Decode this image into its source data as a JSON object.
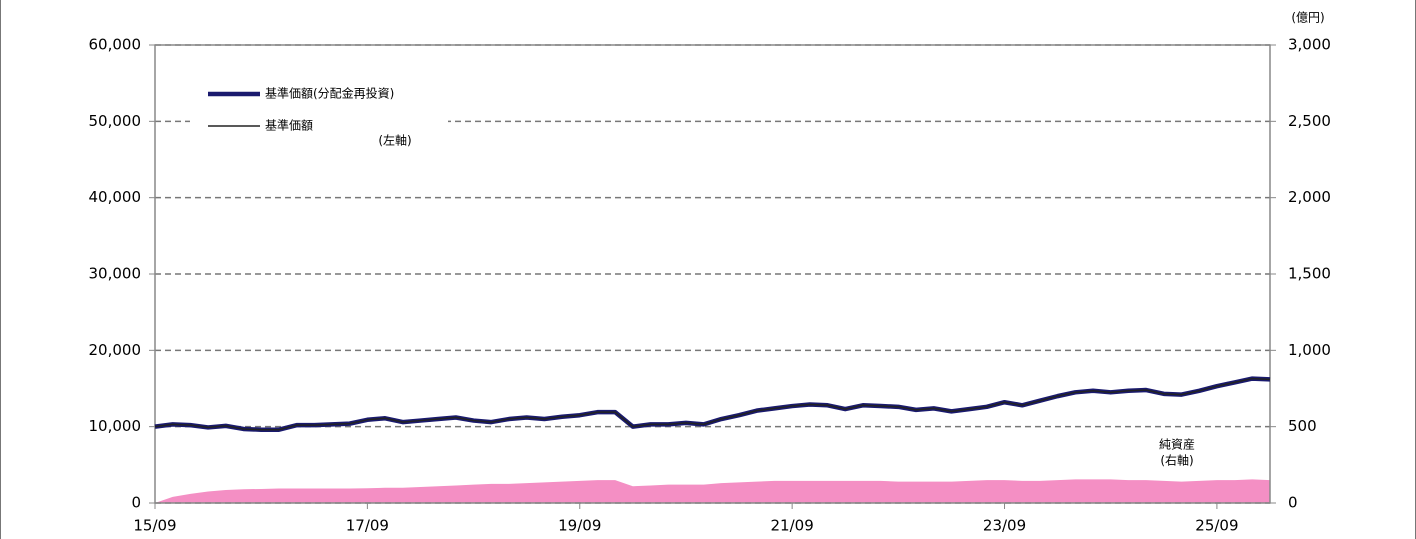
{
  "chart_data": {
    "type": "line",
    "y2_unit": "(億円)",
    "annotations": [
      "(左軸)",
      "(右軸)"
    ],
    "legend": "upper left",
    "grid": true,
    "categories": [
      "15/09",
      null,
      null,
      null,
      null,
      null,
      null,
      null,
      null,
      null,
      null,
      null,
      "17/09",
      null,
      null,
      null,
      null,
      null,
      null,
      null,
      null,
      null,
      null,
      null,
      "19/09",
      null,
      null,
      null,
      null,
      null,
      null,
      null,
      null,
      null,
      null,
      null,
      "21/09",
      null,
      null,
      null,
      null,
      null,
      null,
      null,
      null,
      null,
      null,
      null,
      "23/09",
      null,
      null,
      null,
      null,
      null,
      null,
      null,
      null,
      null,
      null,
      null,
      "25/09",
      null,
      null,
      null
    ],
    "series": [
      {
        "name": "基準価額(分配金再投資)",
        "color": "#1a1a6e",
        "values": [
          10000,
          10300,
          10200,
          9900,
          10100,
          9700,
          9600,
          9600,
          10200,
          10200,
          10300,
          10400,
          10900,
          11100,
          10600,
          10800,
          11000,
          11200,
          10800,
          10600,
          11000,
          11200,
          11000,
          11300,
          11500,
          11900,
          11900,
          10000,
          10300,
          10300,
          10500,
          10300,
          11000,
          11500,
          12100,
          12400,
          12700,
          12900,
          12800,
          12300,
          12800,
          12700,
          12600,
          12200,
          12400,
          12000,
          12300,
          12600,
          13200,
          12800,
          13400,
          14000,
          14500,
          14700,
          14500,
          14700,
          14800,
          14300,
          14200,
          14700,
          15300,
          15800,
          16300,
          16200
        ]
      },
      {
        "name": "基準価額",
        "color": "#222222",
        "values": [
          10000,
          10300,
          10200,
          9900,
          10100,
          9700,
          9600,
          9600,
          10200,
          10200,
          10300,
          10400,
          10900,
          11100,
          10600,
          10800,
          11000,
          11200,
          10800,
          10600,
          11000,
          11200,
          11000,
          11300,
          11500,
          11900,
          11900,
          10000,
          10300,
          10300,
          10500,
          10300,
          11000,
          11500,
          12100,
          12400,
          12700,
          12900,
          12800,
          12300,
          12800,
          12700,
          12600,
          12200,
          12400,
          12000,
          12300,
          12600,
          13200,
          12800,
          13400,
          14000,
          14500,
          14700,
          14500,
          14700,
          14800,
          14300,
          14200,
          14700,
          15300,
          15800,
          16300,
          16200
        ]
      },
      {
        "name": "純資産",
        "color": "#f48fc4",
        "axis": "y2",
        "kind": "area",
        "values": [
          0,
          40,
          60,
          75,
          85,
          90,
          92,
          95,
          95,
          95,
          95,
          95,
          97,
          100,
          100,
          105,
          110,
          115,
          120,
          125,
          125,
          130,
          135,
          140,
          145,
          150,
          150,
          110,
          115,
          120,
          120,
          120,
          130,
          135,
          140,
          145,
          145,
          145,
          145,
          145,
          145,
          145,
          140,
          140,
          140,
          140,
          145,
          150,
          150,
          145,
          145,
          150,
          155,
          155,
          155,
          150,
          150,
          145,
          140,
          145,
          150,
          150,
          155,
          150
        ]
      }
    ],
    "ylim": [
      0,
      60000
    ],
    "yticks": [
      0,
      {
        "value": 10000,
        "label": "10,000"
      },
      {
        "value": 20000,
        "label": "20,000"
      },
      {
        "value": 30000,
        "label": "30,000"
      },
      {
        "value": 40000,
        "label": "40,000"
      },
      {
        "value": 50000,
        "label": "50,000"
      },
      {
        "value": 60000,
        "label": "60,000"
      }
    ],
    "y2lim": [
      0,
      3000
    ],
    "y2ticks": [
      0,
      500,
      {
        "value": 1000,
        "label": "1,000"
      },
      {
        "value": 1500,
        "label": "1,500"
      },
      {
        "value": 2000,
        "label": "2,000"
      },
      {
        "value": 2500,
        "label": "2,500"
      },
      {
        "value": 3000,
        "label": "3,000"
      }
    ]
  }
}
